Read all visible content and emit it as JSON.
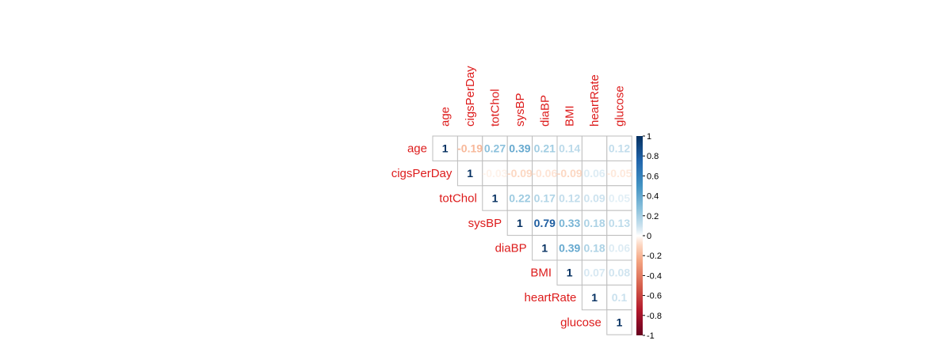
{
  "chart_data": {
    "type": "heatmap",
    "layout": "upper-triangle",
    "variables": [
      "age",
      "cigsPerDay",
      "totChol",
      "sysBP",
      "diaBP",
      "BMI",
      "heartRate",
      "glucose"
    ],
    "matrix": [
      [
        1,
        -0.19,
        0.27,
        0.39,
        0.21,
        0.14,
        null,
        0.12
      ],
      [
        null,
        1,
        -0.03,
        -0.09,
        -0.06,
        -0.09,
        0.06,
        -0.05
      ],
      [
        null,
        null,
        1,
        0.22,
        0.17,
        0.12,
        0.09,
        0.05
      ],
      [
        null,
        null,
        null,
        1,
        0.79,
        0.33,
        0.18,
        0.13
      ],
      [
        null,
        null,
        null,
        null,
        1,
        0.39,
        0.18,
        0.06
      ],
      [
        null,
        null,
        null,
        null,
        null,
        1,
        0.07,
        0.08
      ],
      [
        null,
        null,
        null,
        null,
        null,
        null,
        1,
        0.1
      ],
      [
        null,
        null,
        null,
        null,
        null,
        null,
        null,
        1
      ]
    ],
    "display_labels": [
      [
        "1",
        "-0.19",
        "0.27",
        "0.39",
        "0.21",
        "0.14",
        "",
        "0.12"
      ],
      [
        "",
        "1",
        "-0.03",
        "-0.09",
        "-0.06",
        "-0.09",
        "0.06",
        "-0.05"
      ],
      [
        "",
        "",
        "1",
        "0.22",
        "0.17",
        "0.12",
        "0.09",
        "0.05"
      ],
      [
        "",
        "",
        "",
        "1",
        "0.79",
        "0.33",
        "0.18",
        "0.13"
      ],
      [
        "",
        "",
        "",
        "",
        "1",
        "0.39",
        "0.18",
        "0.06"
      ],
      [
        "",
        "",
        "",
        "",
        "",
        "1",
        "0.07",
        "0.08"
      ],
      [
        "",
        "",
        "",
        "",
        "",
        "",
        "1",
        "0.1"
      ],
      [
        "",
        "",
        "",
        "",
        "",
        "",
        "",
        "1"
      ]
    ],
    "colorbar": {
      "range": [
        -1,
        1
      ],
      "ticks": [
        "1",
        "0.8",
        "0.6",
        "0.4",
        "0.2",
        "0",
        "-0.2",
        "-0.4",
        "-0.6",
        "-0.8",
        "-1"
      ],
      "placement": "right"
    },
    "colors": {
      "label": "#dd1c1c",
      "negative_end": "#67001f",
      "positive_end": "#053061",
      "grid": "#bdbdbd"
    }
  }
}
